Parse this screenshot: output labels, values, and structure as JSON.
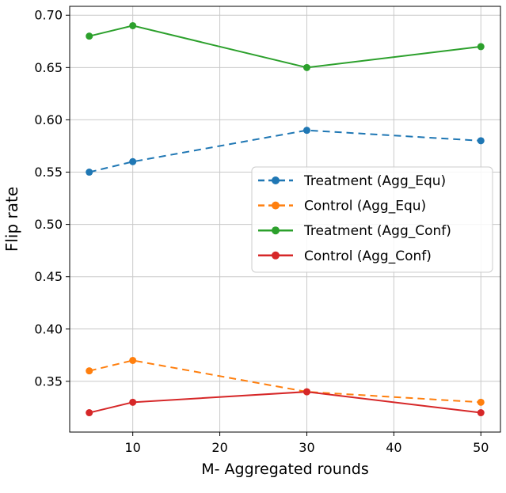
{
  "chart_data": {
    "type": "line",
    "title": "",
    "xlabel": "M- Aggregated rounds",
    "ylabel": "Flip rate",
    "x": [
      5,
      10,
      30,
      50
    ],
    "xlim": [
      2.75,
      52.25
    ],
    "ylim": [
      0.3015,
      0.7085
    ],
    "xticks": [
      10,
      20,
      30,
      40,
      50
    ],
    "yticks": [
      0.35,
      0.4,
      0.45,
      0.5,
      0.55,
      0.6,
      0.65,
      0.7
    ],
    "ytick_labels": [
      "0.35",
      "0.40",
      "0.45",
      "0.50",
      "0.55",
      "0.60",
      "0.65",
      "0.70"
    ],
    "grid": true,
    "grid_color": "#c9c9c9",
    "series": [
      {
        "name": "Treatment (Agg_Equ)",
        "color": "#1f77b4",
        "style": "dashed",
        "values": [
          0.55,
          0.56,
          0.59,
          0.58
        ]
      },
      {
        "name": "Control (Agg_Equ)",
        "color": "#ff7f0e",
        "style": "dashed",
        "values": [
          0.36,
          0.37,
          0.34,
          0.33
        ]
      },
      {
        "name": "Treatment (Agg_Conf)",
        "color": "#2ca02c",
        "style": "solid",
        "values": [
          0.68,
          0.69,
          0.65,
          0.67
        ]
      },
      {
        "name": "Control (Agg_Conf)",
        "color": "#d62728",
        "style": "solid",
        "values": [
          0.32,
          0.33,
          0.34,
          0.32
        ]
      }
    ],
    "legend": {
      "position": "center right",
      "entries": [
        "Treatment (Agg_Equ)",
        "Control (Agg_Equ)",
        "Treatment (Agg_Conf)",
        "Control (Agg_Conf)"
      ]
    }
  }
}
